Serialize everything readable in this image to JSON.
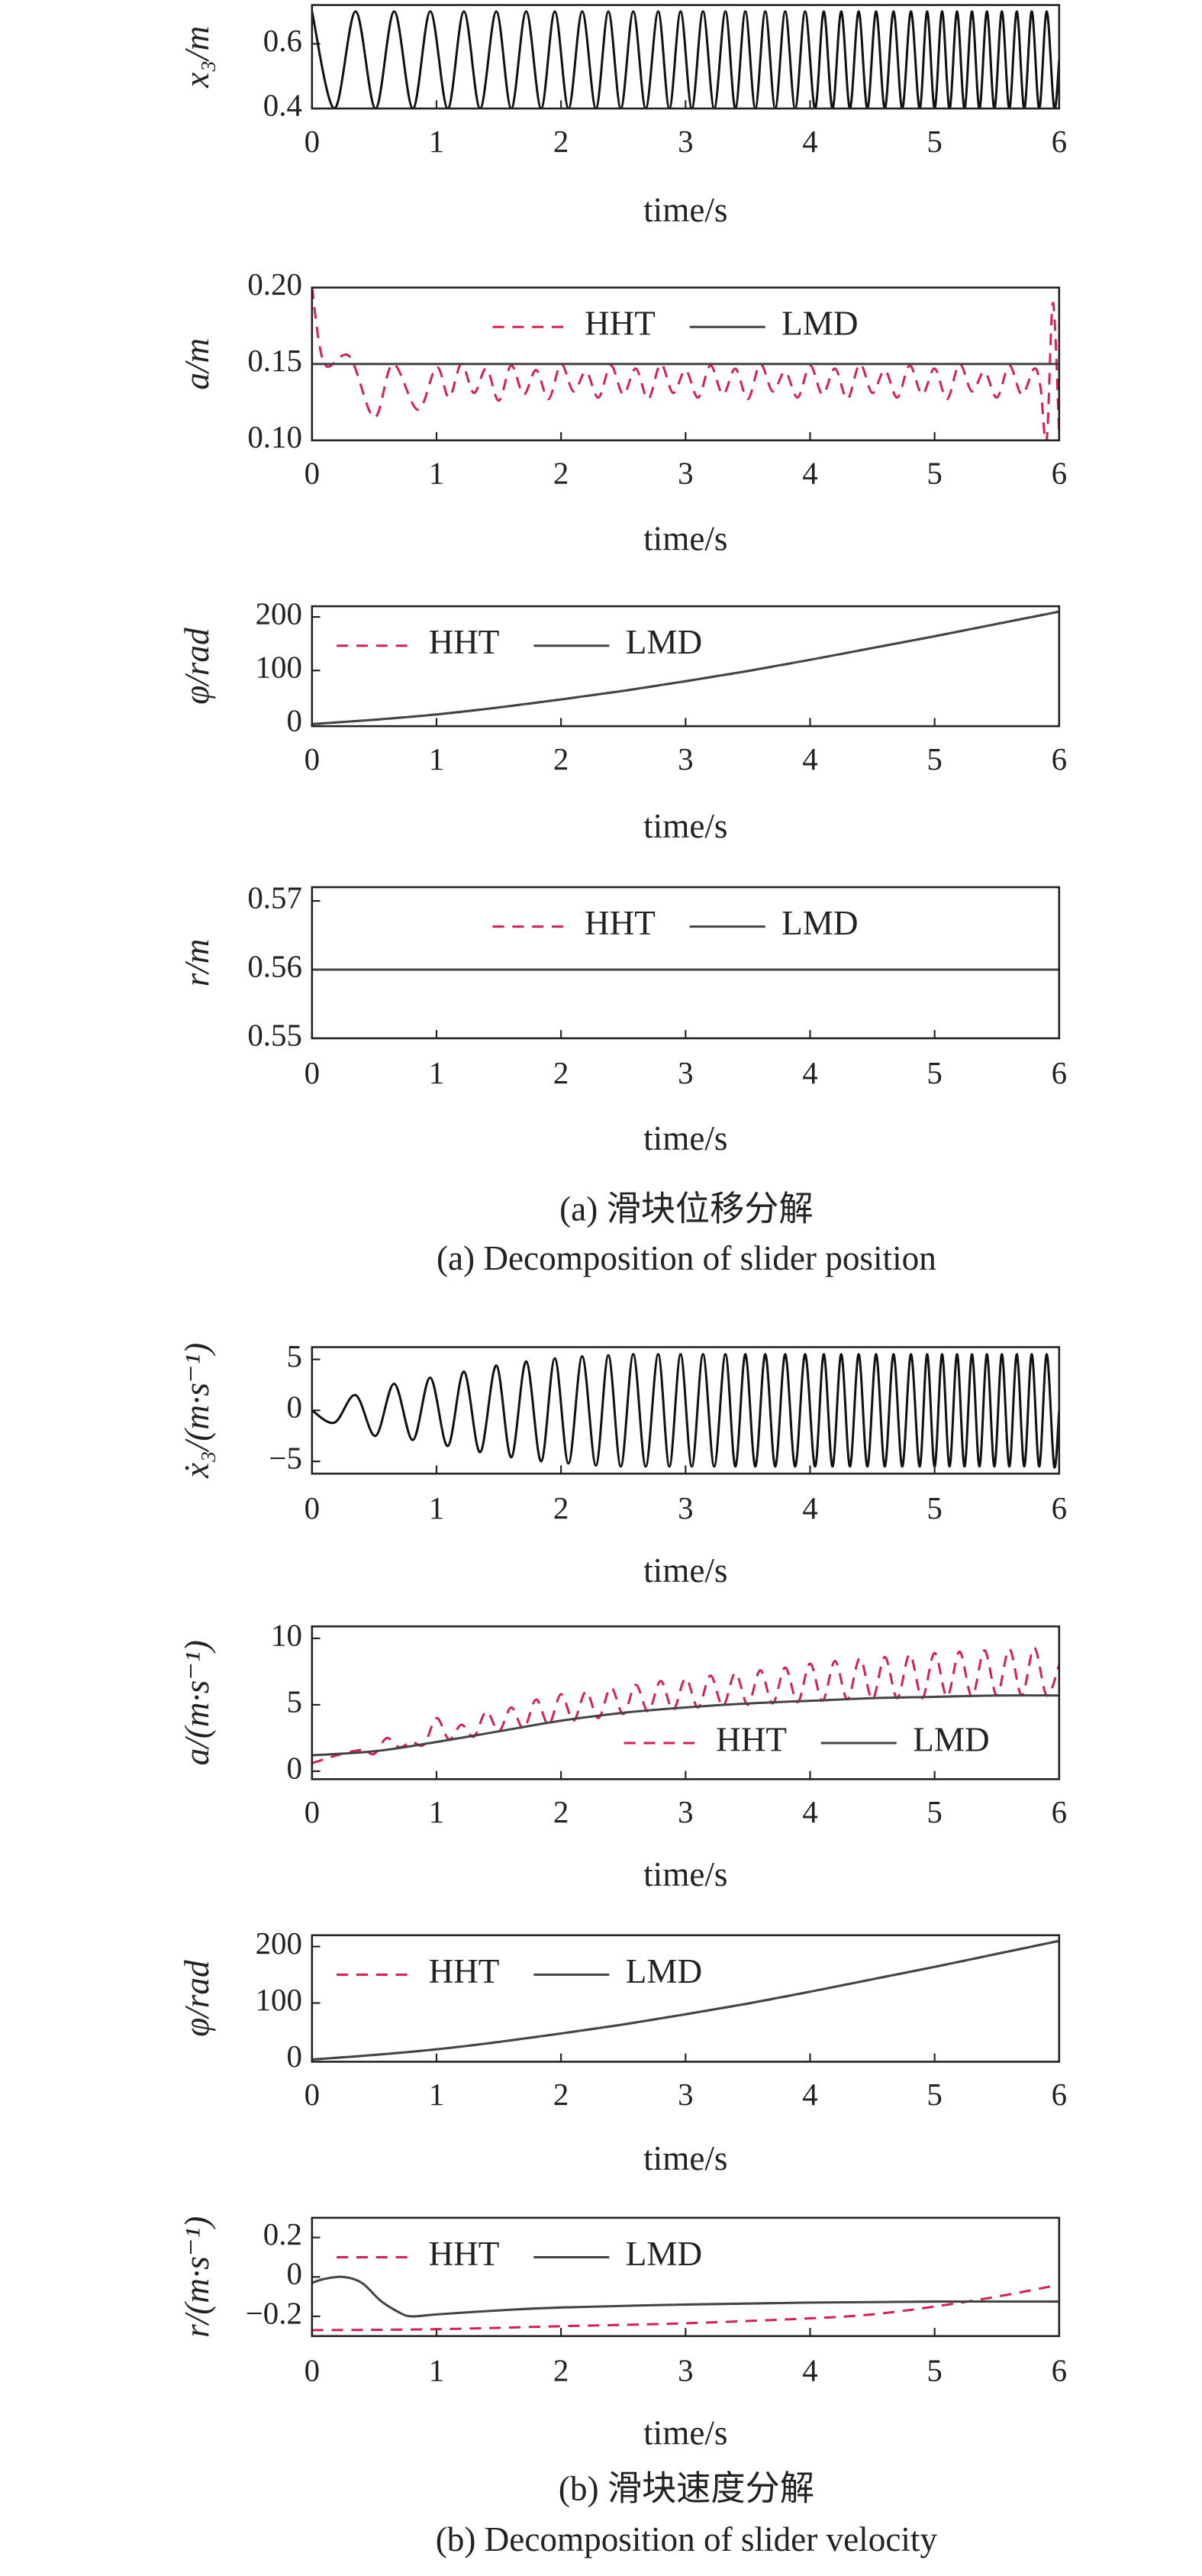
{
  "chart_data": [
    {
      "type": "line",
      "ylabel": "x₃/m",
      "xlabel": "time/s",
      "xlim": [
        0,
        6
      ],
      "xticks": [
        0,
        1,
        2,
        3,
        4,
        5,
        6
      ],
      "ylim": [
        0.4,
        0.72
      ],
      "yticks": [
        0.4,
        0.6
      ],
      "smooth": true,
      "series": [
        {
          "color": "#111111",
          "linestyle": "solid",
          "x": [
            0,
            0.18,
            0.35,
            0.51,
            0.66,
            0.81,
            0.95,
            1.09,
            1.22,
            1.35,
            1.48,
            1.6,
            1.72,
            1.84,
            1.95,
            2.06,
            2.17,
            2.28,
            2.38,
            2.48,
            2.58,
            2.68,
            2.78,
            2.87,
            2.96,
            3.05,
            3.14,
            3.23,
            3.32,
            3.4,
            3.48,
            3.56,
            3.64,
            3.72,
            3.8,
            3.88,
            3.96,
            4.04,
            4.11,
            4.18,
            4.25,
            4.32,
            4.39,
            4.46,
            4.53,
            4.6,
            4.67,
            4.74,
            4.81,
            4.88,
            4.94,
            5.0,
            5.06,
            5.12,
            5.18,
            5.24,
            5.3,
            5.36,
            5.42,
            5.48,
            5.54,
            5.6,
            5.66,
            5.72,
            5.78,
            5.84,
            5.9,
            5.96,
            6.0
          ],
          "values": [
            0.7,
            0.4,
            0.7,
            0.4,
            0.7,
            0.4,
            0.7,
            0.4,
            0.7,
            0.4,
            0.7,
            0.4,
            0.7,
            0.4,
            0.7,
            0.4,
            0.7,
            0.4,
            0.7,
            0.4,
            0.7,
            0.4,
            0.7,
            0.4,
            0.7,
            0.4,
            0.7,
            0.4,
            0.7,
            0.4,
            0.7,
            0.4,
            0.7,
            0.4,
            0.7,
            0.4,
            0.7,
            0.4,
            0.7,
            0.4,
            0.7,
            0.4,
            0.7,
            0.4,
            0.7,
            0.4,
            0.7,
            0.4,
            0.7,
            0.4,
            0.7,
            0.4,
            0.7,
            0.4,
            0.7,
            0.4,
            0.7,
            0.4,
            0.7,
            0.4,
            0.7,
            0.4,
            0.7,
            0.4,
            0.7,
            0.4,
            0.7,
            0.4,
            0.55
          ]
        }
      ]
    },
    {
      "type": "line",
      "ylabel": "a/m",
      "xlabel": "time/s",
      "xlim": [
        0,
        6
      ],
      "xticks": [
        0,
        1,
        2,
        3,
        4,
        5,
        6
      ],
      "ylim": [
        0.1,
        0.2
      ],
      "yticks": [
        {
          "value": 0.1,
          "label": "0.10"
        },
        {
          "value": 0.15,
          "label": "0.15"
        },
        {
          "value": 0.2,
          "label": "0.20"
        }
      ],
      "legend": "upper center",
      "smooth": true,
      "series": [
        {
          "name": "HHT",
          "color": "#d6204f",
          "linestyle": "dashed",
          "x": [
            0,
            0.1,
            0.3,
            0.5,
            0.65,
            0.85,
            1.0,
            1.1,
            1.2,
            1.3,
            1.4,
            1.5,
            1.6,
            1.7,
            1.8,
            1.9,
            2.0,
            2.1,
            2.2,
            2.3,
            2.4,
            2.5,
            2.6,
            2.7,
            2.8,
            2.9,
            3.0,
            3.1,
            3.2,
            3.3,
            3.4,
            3.5,
            3.6,
            3.7,
            3.8,
            3.9,
            4.0,
            4.1,
            4.2,
            4.3,
            4.4,
            4.5,
            4.6,
            4.7,
            4.8,
            4.9,
            5.0,
            5.1,
            5.2,
            5.3,
            5.4,
            5.5,
            5.6,
            5.7,
            5.8,
            5.85,
            5.9,
            5.95,
            6.0
          ],
          "values": [
            0.2,
            0.15,
            0.155,
            0.115,
            0.15,
            0.12,
            0.148,
            0.128,
            0.15,
            0.131,
            0.147,
            0.126,
            0.149,
            0.13,
            0.146,
            0.127,
            0.15,
            0.132,
            0.145,
            0.128,
            0.149,
            0.13,
            0.147,
            0.127,
            0.15,
            0.131,
            0.146,
            0.128,
            0.149,
            0.13,
            0.147,
            0.127,
            0.15,
            0.132,
            0.145,
            0.128,
            0.149,
            0.13,
            0.147,
            0.127,
            0.15,
            0.131,
            0.146,
            0.128,
            0.149,
            0.13,
            0.147,
            0.127,
            0.15,
            0.132,
            0.145,
            0.128,
            0.149,
            0.13,
            0.147,
            0.135,
            0.1,
            0.19,
            0.105
          ]
        },
        {
          "name": "LMD",
          "color": "#444444",
          "linestyle": "solid",
          "x": [
            0,
            6
          ],
          "values": [
            0.15,
            0.15
          ]
        }
      ]
    },
    {
      "type": "line",
      "ylabel": "φ/rad",
      "xlabel": "time/s",
      "xlim": [
        0,
        6
      ],
      "xticks": [
        0,
        1,
        2,
        3,
        4,
        5,
        6
      ],
      "ylim": [
        -4,
        220
      ],
      "yticks": [
        0,
        100,
        200
      ],
      "legend": "upper left",
      "smooth": true,
      "series": [
        {
          "name": "HHT",
          "color": "#d6204f",
          "linestyle": "dashed",
          "x": [
            0,
            0.5,
            1,
            1.5,
            2,
            2.5,
            3,
            3.5,
            4,
            4.5,
            5,
            5.5,
            6
          ],
          "values": [
            0,
            8,
            18,
            31,
            46,
            62,
            80,
            99,
            120,
            142,
            164,
            187,
            210
          ]
        },
        {
          "name": "LMD",
          "color": "#444444",
          "linestyle": "solid",
          "x": [
            0,
            0.5,
            1,
            1.5,
            2,
            2.5,
            3,
            3.5,
            4,
            4.5,
            5,
            5.5,
            6
          ],
          "values": [
            0,
            8,
            18,
            31,
            46,
            62,
            80,
            99,
            120,
            142,
            164,
            187,
            210
          ]
        }
      ]
    },
    {
      "type": "line",
      "ylabel": "r/m",
      "xlabel": "time/s",
      "xlim": [
        0,
        6
      ],
      "xticks": [
        0,
        1,
        2,
        3,
        4,
        5,
        6
      ],
      "ylim": [
        0.55,
        0.572
      ],
      "yticks": [
        0.55,
        0.56,
        0.57
      ],
      "legend": "upper center",
      "smooth": true,
      "series": [
        {
          "name": "HHT",
          "color": "#d6204f",
          "linestyle": "dashed",
          "x": [
            0,
            6
          ],
          "values": [
            0.56,
            0.56
          ]
        },
        {
          "name": "LMD",
          "color": "#444444",
          "linestyle": "solid",
          "x": [
            0,
            6
          ],
          "values": [
            0.56,
            0.56
          ]
        }
      ]
    },
    {
      "type": "line",
      "ylabel": "ẋ₃/(m·s⁻¹)",
      "xlabel": "time/s",
      "xlim": [
        0,
        6
      ],
      "xticks": [
        0,
        1,
        2,
        3,
        4,
        5,
        6
      ],
      "ylim": [
        -6.2,
        6.2
      ],
      "yticks": [
        {
          "value": -5,
          "label": "−5"
        },
        0,
        5
      ],
      "smooth": true,
      "series": [
        {
          "color": "#111111",
          "linestyle": "solid",
          "x": [
            0,
            0.18,
            0.35,
            0.51,
            0.66,
            0.81,
            0.95,
            1.09,
            1.22,
            1.35,
            1.48,
            1.6,
            1.72,
            1.84,
            1.95,
            2.06,
            2.17,
            2.28,
            2.38,
            2.48,
            2.58,
            2.68,
            2.78,
            2.87,
            2.96,
            3.05,
            3.14,
            3.23,
            3.32,
            3.4,
            3.48,
            3.56,
            3.64,
            3.72,
            3.8,
            3.88,
            3.96,
            4.04,
            4.11,
            4.18,
            4.25,
            4.32,
            4.39,
            4.46,
            4.53,
            4.6,
            4.67,
            4.74,
            4.81,
            4.88,
            4.94,
            5.0,
            5.06,
            5.12,
            5.18,
            5.24,
            5.3,
            5.36,
            5.42,
            5.48,
            5.54,
            5.6,
            5.66,
            5.72,
            5.78,
            5.84,
            5.9,
            5.96,
            6.0
          ],
          "values": [
            0,
            -1.2,
            1.5,
            -2.5,
            2.6,
            -2.9,
            3.2,
            -3.5,
            3.8,
            -4.1,
            4.4,
            -4.6,
            4.8,
            -5.0,
            5.1,
            -5.2,
            5.3,
            -5.4,
            5.4,
            -5.5,
            5.5,
            -5.5,
            5.5,
            -5.5,
            5.5,
            -5.5,
            5.5,
            -5.5,
            5.5,
            -5.5,
            5.5,
            -5.5,
            5.5,
            -5.5,
            5.5,
            -5.5,
            5.5,
            -5.5,
            5.5,
            -5.5,
            5.5,
            -5.5,
            5.5,
            -5.5,
            5.5,
            -5.5,
            5.5,
            -5.5,
            5.5,
            -5.5,
            5.5,
            -5.5,
            5.5,
            -5.5,
            5.5,
            -5.5,
            5.5,
            -5.5,
            5.5,
            -5.5,
            5.5,
            -5.5,
            5.5,
            -5.5,
            5.5,
            -5.5,
            5.5,
            -5.5,
            0
          ]
        }
      ]
    },
    {
      "type": "line",
      "ylabel": "a/(m·s⁻¹)",
      "xlabel": "time/s",
      "xlim": [
        0,
        6
      ],
      "xticks": [
        0,
        1,
        2,
        3,
        4,
        5,
        6
      ],
      "ylim": [
        -0.6,
        10.9
      ],
      "yticks": [
        0,
        5,
        10
      ],
      "legend": "lower right",
      "smooth": true,
      "series": [
        {
          "name": "HHT",
          "color": "#d6204f",
          "linestyle": "dashed",
          "x": [
            0,
            0.2,
            0.4,
            0.5,
            0.6,
            0.7,
            0.8,
            0.9,
            1.0,
            1.1,
            1.2,
            1.3,
            1.4,
            1.5,
            1.6,
            1.7,
            1.8,
            1.9,
            2.0,
            2.1,
            2.2,
            2.3,
            2.4,
            2.5,
            2.6,
            2.7,
            2.8,
            2.9,
            3.0,
            3.1,
            3.2,
            3.3,
            3.4,
            3.5,
            3.6,
            3.7,
            3.8,
            3.9,
            4.0,
            4.1,
            4.2,
            4.3,
            4.4,
            4.5,
            4.6,
            4.7,
            4.8,
            4.9,
            5.0,
            5.1,
            5.2,
            5.3,
            5.4,
            5.5,
            5.6,
            5.7,
            5.8,
            5.9,
            6.0
          ],
          "values": [
            0.6,
            1.2,
            1.6,
            1.3,
            2.5,
            1.8,
            2.2,
            2.0,
            4.0,
            2.4,
            3.5,
            2.6,
            4.5,
            3.0,
            4.8,
            3.2,
            5.4,
            3.5,
            5.8,
            3.8,
            6.0,
            4.0,
            6.3,
            4.3,
            6.5,
            4.5,
            6.8,
            4.6,
            7.0,
            4.8,
            7.2,
            4.9,
            7.4,
            5.0,
            7.6,
            5.1,
            7.8,
            5.2,
            8.1,
            5.3,
            8.3,
            5.4,
            8.5,
            5.4,
            8.6,
            5.5,
            8.8,
            5.5,
            8.9,
            5.6,
            9.0,
            5.6,
            9.1,
            5.7,
            9.2,
            5.7,
            9.3,
            5.7,
            8.0
          ]
        },
        {
          "name": "LMD",
          "color": "#444444",
          "linestyle": "solid",
          "x": [
            0,
            0.5,
            1,
            1.5,
            2,
            2.5,
            3,
            3.5,
            4,
            4.5,
            5,
            5.5,
            6
          ],
          "values": [
            1.2,
            1.5,
            2.2,
            3.0,
            3.8,
            4.4,
            4.8,
            5.1,
            5.3,
            5.5,
            5.6,
            5.7,
            5.7
          ]
        }
      ]
    },
    {
      "type": "line",
      "ylabel": "φ/rad",
      "xlabel": "time/s",
      "xlim": [
        0,
        6
      ],
      "xticks": [
        0,
        1,
        2,
        3,
        4,
        5,
        6
      ],
      "ylim": [
        -4,
        220
      ],
      "yticks": [
        0,
        100,
        200
      ],
      "legend": "upper left",
      "smooth": true,
      "series": [
        {
          "name": "HHT",
          "color": "#d6204f",
          "linestyle": "dashed",
          "x": [
            0,
            0.5,
            1,
            1.5,
            2,
            2.5,
            3,
            3.5,
            4,
            4.5,
            5,
            5.5,
            6
          ],
          "values": [
            0,
            8,
            18,
            31,
            46,
            62,
            80,
            99,
            120,
            142,
            164,
            187,
            210
          ]
        },
        {
          "name": "LMD",
          "color": "#444444",
          "linestyle": "solid",
          "x": [
            0,
            0.5,
            1,
            1.5,
            2,
            2.5,
            3,
            3.5,
            4,
            4.5,
            5,
            5.5,
            6
          ],
          "values": [
            0,
            8,
            18,
            31,
            46,
            62,
            80,
            99,
            120,
            142,
            164,
            187,
            210
          ]
        }
      ]
    },
    {
      "type": "line",
      "ylabel": "r/(m·s⁻¹)",
      "xlabel": "time/s",
      "xlim": [
        0,
        6
      ],
      "xticks": [
        0,
        1,
        2,
        3,
        4,
        5,
        6
      ],
      "ylim": [
        -0.3,
        0.3
      ],
      "yticks": [
        {
          "value": -0.2,
          "label": "−0.2"
        },
        0,
        0.2
      ],
      "legend": "upper left",
      "smooth": true,
      "series": [
        {
          "name": "HHT",
          "color": "#d6204f",
          "linestyle": "dashed",
          "x": [
            0,
            1,
            2,
            3,
            4,
            4.5,
            5,
            5.5,
            6
          ],
          "values": [
            -0.27,
            -0.265,
            -0.25,
            -0.235,
            -0.21,
            -0.19,
            -0.15,
            -0.1,
            -0.04
          ]
        },
        {
          "name": "LMD",
          "color": "#444444",
          "linestyle": "solid",
          "x": [
            0,
            0.1,
            0.25,
            0.4,
            0.55,
            0.7,
            0.8,
            1.0,
            1.5,
            2,
            3,
            4,
            5,
            6
          ],
          "values": [
            -0.03,
            -0.01,
            0.0,
            -0.03,
            -0.12,
            -0.18,
            -0.2,
            -0.19,
            -0.17,
            -0.155,
            -0.14,
            -0.13,
            -0.125,
            -0.125
          ]
        }
      ]
    }
  ],
  "captions": [
    "(a) 滑块位移分解",
    "(a) Decomposition of slider position",
    "(b) 滑块速度分解",
    "(b) Decomposition of slider velocity"
  ]
}
